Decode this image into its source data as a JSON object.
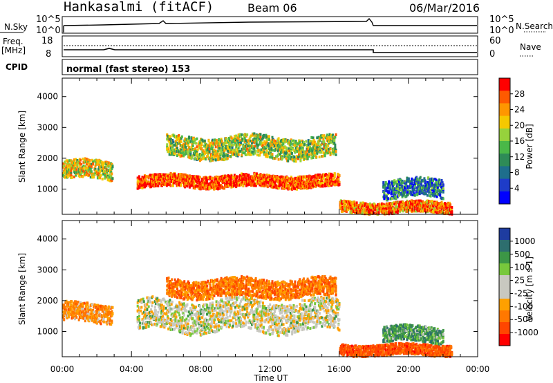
{
  "header": {
    "station": "Hankasalmi (fitACF)",
    "beam": "Beam 06",
    "date": "06/Mar/2016"
  },
  "panels": {
    "nsky_label": "N.Sky",
    "nsky_ticks": [
      "10^5",
      "10^0"
    ],
    "nsearch_label": "N.Search",
    "freq_label": "Freq.",
    "freq_unit": "[MHz]",
    "freq_ticks": [
      "18",
      "8"
    ],
    "nave_label": "Nave",
    "nave_ticks": [
      "60",
      "0"
    ],
    "cpid_label": "CPID",
    "cpid_text": "normal (fast stereo) 153"
  },
  "axes": {
    "ylabel": "Slant Range [km]",
    "xlabel": "Time UT",
    "yticks": [
      "4000",
      "3000",
      "2000",
      "1000"
    ],
    "xticks": [
      "00:00",
      "04:00",
      "08:00",
      "12:00",
      "16:00",
      "20:00",
      "00:00"
    ]
  },
  "colorbars": {
    "power": {
      "label": "Power [dB]",
      "ticks": [
        "28",
        "24",
        "20",
        "16",
        "12",
        "8",
        "4"
      ],
      "colors": [
        "#ff0000",
        "#ff5a00",
        "#ff9600",
        "#f5c800",
        "#96d23c",
        "#4ab848",
        "#2e8b57",
        "#1e6e8c",
        "#1e3cc8",
        "#0000ff"
      ]
    },
    "velocity": {
      "label": "Velocity [m s-1]",
      "ticks": [
        "1000",
        "500",
        "100",
        "25",
        "-25",
        "-100",
        "-500",
        "-1000"
      ],
      "colors": [
        "#1e3ca0",
        "#2d6e6e",
        "#3c9646",
        "#78c83c",
        "#c8c8c0",
        "#c8c8c0",
        "#ffa000",
        "#ff7800",
        "#ff4600",
        "#ff0000"
      ]
    }
  },
  "chart_data": [
    {
      "type": "heatmap",
      "title": "Power",
      "x": [
        "00:00",
        "04:00",
        "08:00",
        "12:00",
        "16:00",
        "20:00",
        "00:00"
      ],
      "ylabel": "Slant Range [km]",
      "ylim": [
        180,
        4600
      ],
      "xlim": [
        0,
        24
      ],
      "colorbar_label": "Power [dB]",
      "regions": [
        {
          "x_start": 0.0,
          "x_end": 2.9,
          "y_center": 1600,
          "y_halfwidth": 300,
          "value": 20
        },
        {
          "x_start": 4.3,
          "x_end": 16.0,
          "y_center": 1250,
          "y_halfwidth": 200,
          "value": 28
        },
        {
          "x_start": 6.0,
          "x_end": 15.8,
          "y_center": 2350,
          "y_halfwidth": 350,
          "value": 18
        },
        {
          "x_start": 16.0,
          "x_end": 22.5,
          "y_center": 400,
          "y_halfwidth": 180,
          "value": 26
        },
        {
          "x_start": 18.5,
          "x_end": 22.0,
          "y_center": 1000,
          "y_halfwidth": 300,
          "value": 10
        }
      ]
    },
    {
      "type": "heatmap",
      "title": "Velocity",
      "x": [
        "00:00",
        "04:00",
        "08:00",
        "12:00",
        "16:00",
        "20:00",
        "00:00"
      ],
      "ylabel": "Slant Range [km]",
      "ylim": [
        180,
        4600
      ],
      "xlim": [
        0,
        24
      ],
      "colorbar_label": "Velocity [m s-1]",
      "regions": [
        {
          "x_start": 0.0,
          "x_end": 2.9,
          "y_center": 1600,
          "y_halfwidth": 300,
          "value": -150
        },
        {
          "x_start": 4.3,
          "x_end": 16.0,
          "y_center": 1500,
          "y_halfwidth": 500,
          "value": 0
        },
        {
          "x_start": 6.0,
          "x_end": 15.8,
          "y_center": 2400,
          "y_halfwidth": 300,
          "value": -200
        },
        {
          "x_start": 16.0,
          "x_end": 22.5,
          "y_center": 400,
          "y_halfwidth": 180,
          "value": -300
        },
        {
          "x_start": 18.5,
          "x_end": 22.0,
          "y_center": 900,
          "y_halfwidth": 250,
          "value": 150
        }
      ]
    }
  ]
}
